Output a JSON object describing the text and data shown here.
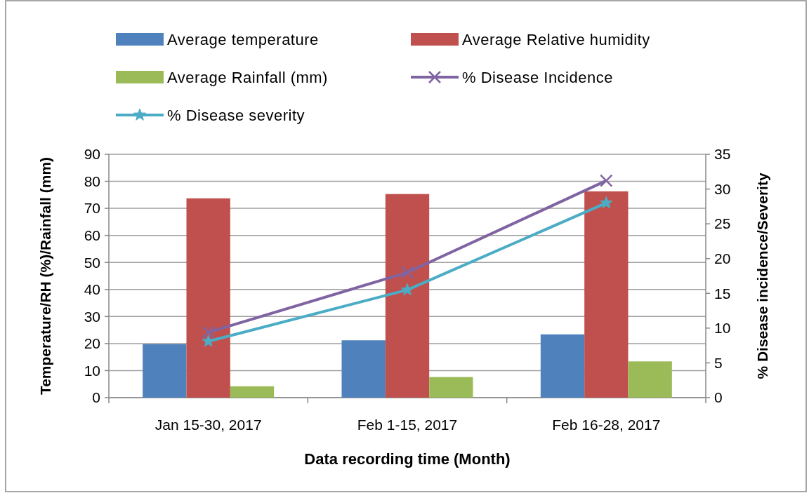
{
  "chart_data": {
    "type": "bar",
    "xlabel": "Data recording time (Month)",
    "ylabel": "Temperature/RH (%)/Rainfall (mm)",
    "y2label": "% Disease incidence/Severity",
    "categories": [
      "Jan 15-30,  2017",
      "Feb 1-15,  2017",
      "Feb 16-28, 2017"
    ],
    "series": [
      {
        "name": "Average temperature",
        "color": "#4f81bd",
        "values": [
          19.8,
          21.2,
          23.4
        ]
      },
      {
        "name": "Average Relative humidity",
        "color": "#c0504d",
        "values": [
          73.7,
          75.3,
          76.3
        ]
      },
      {
        "name": "Average Rainfall (mm)",
        "color": "#9bbb59",
        "values": [
          4.2,
          7.6,
          13.4
        ]
      },
      {
        "name": "% Disease Incidence",
        "type": "line",
        "axis": "y2",
        "marker": "cross",
        "color": "#8064a2",
        "values": [
          9.4,
          18.0,
          31.2
        ]
      },
      {
        "name": "% Disease severity",
        "type": "line",
        "axis": "y2",
        "marker": "star",
        "color": "#4bacc6",
        "values": [
          8.1,
          15.5,
          28.0
        ]
      }
    ],
    "ylim": [
      0,
      90
    ],
    "yticks": [
      0,
      10,
      20,
      30,
      40,
      50,
      60,
      70,
      80,
      90
    ],
    "y2lim": [
      0,
      35
    ],
    "y2ticks": [
      0,
      5,
      10,
      15,
      20,
      25,
      30,
      35
    ],
    "grid": "y",
    "legend": "top"
  }
}
